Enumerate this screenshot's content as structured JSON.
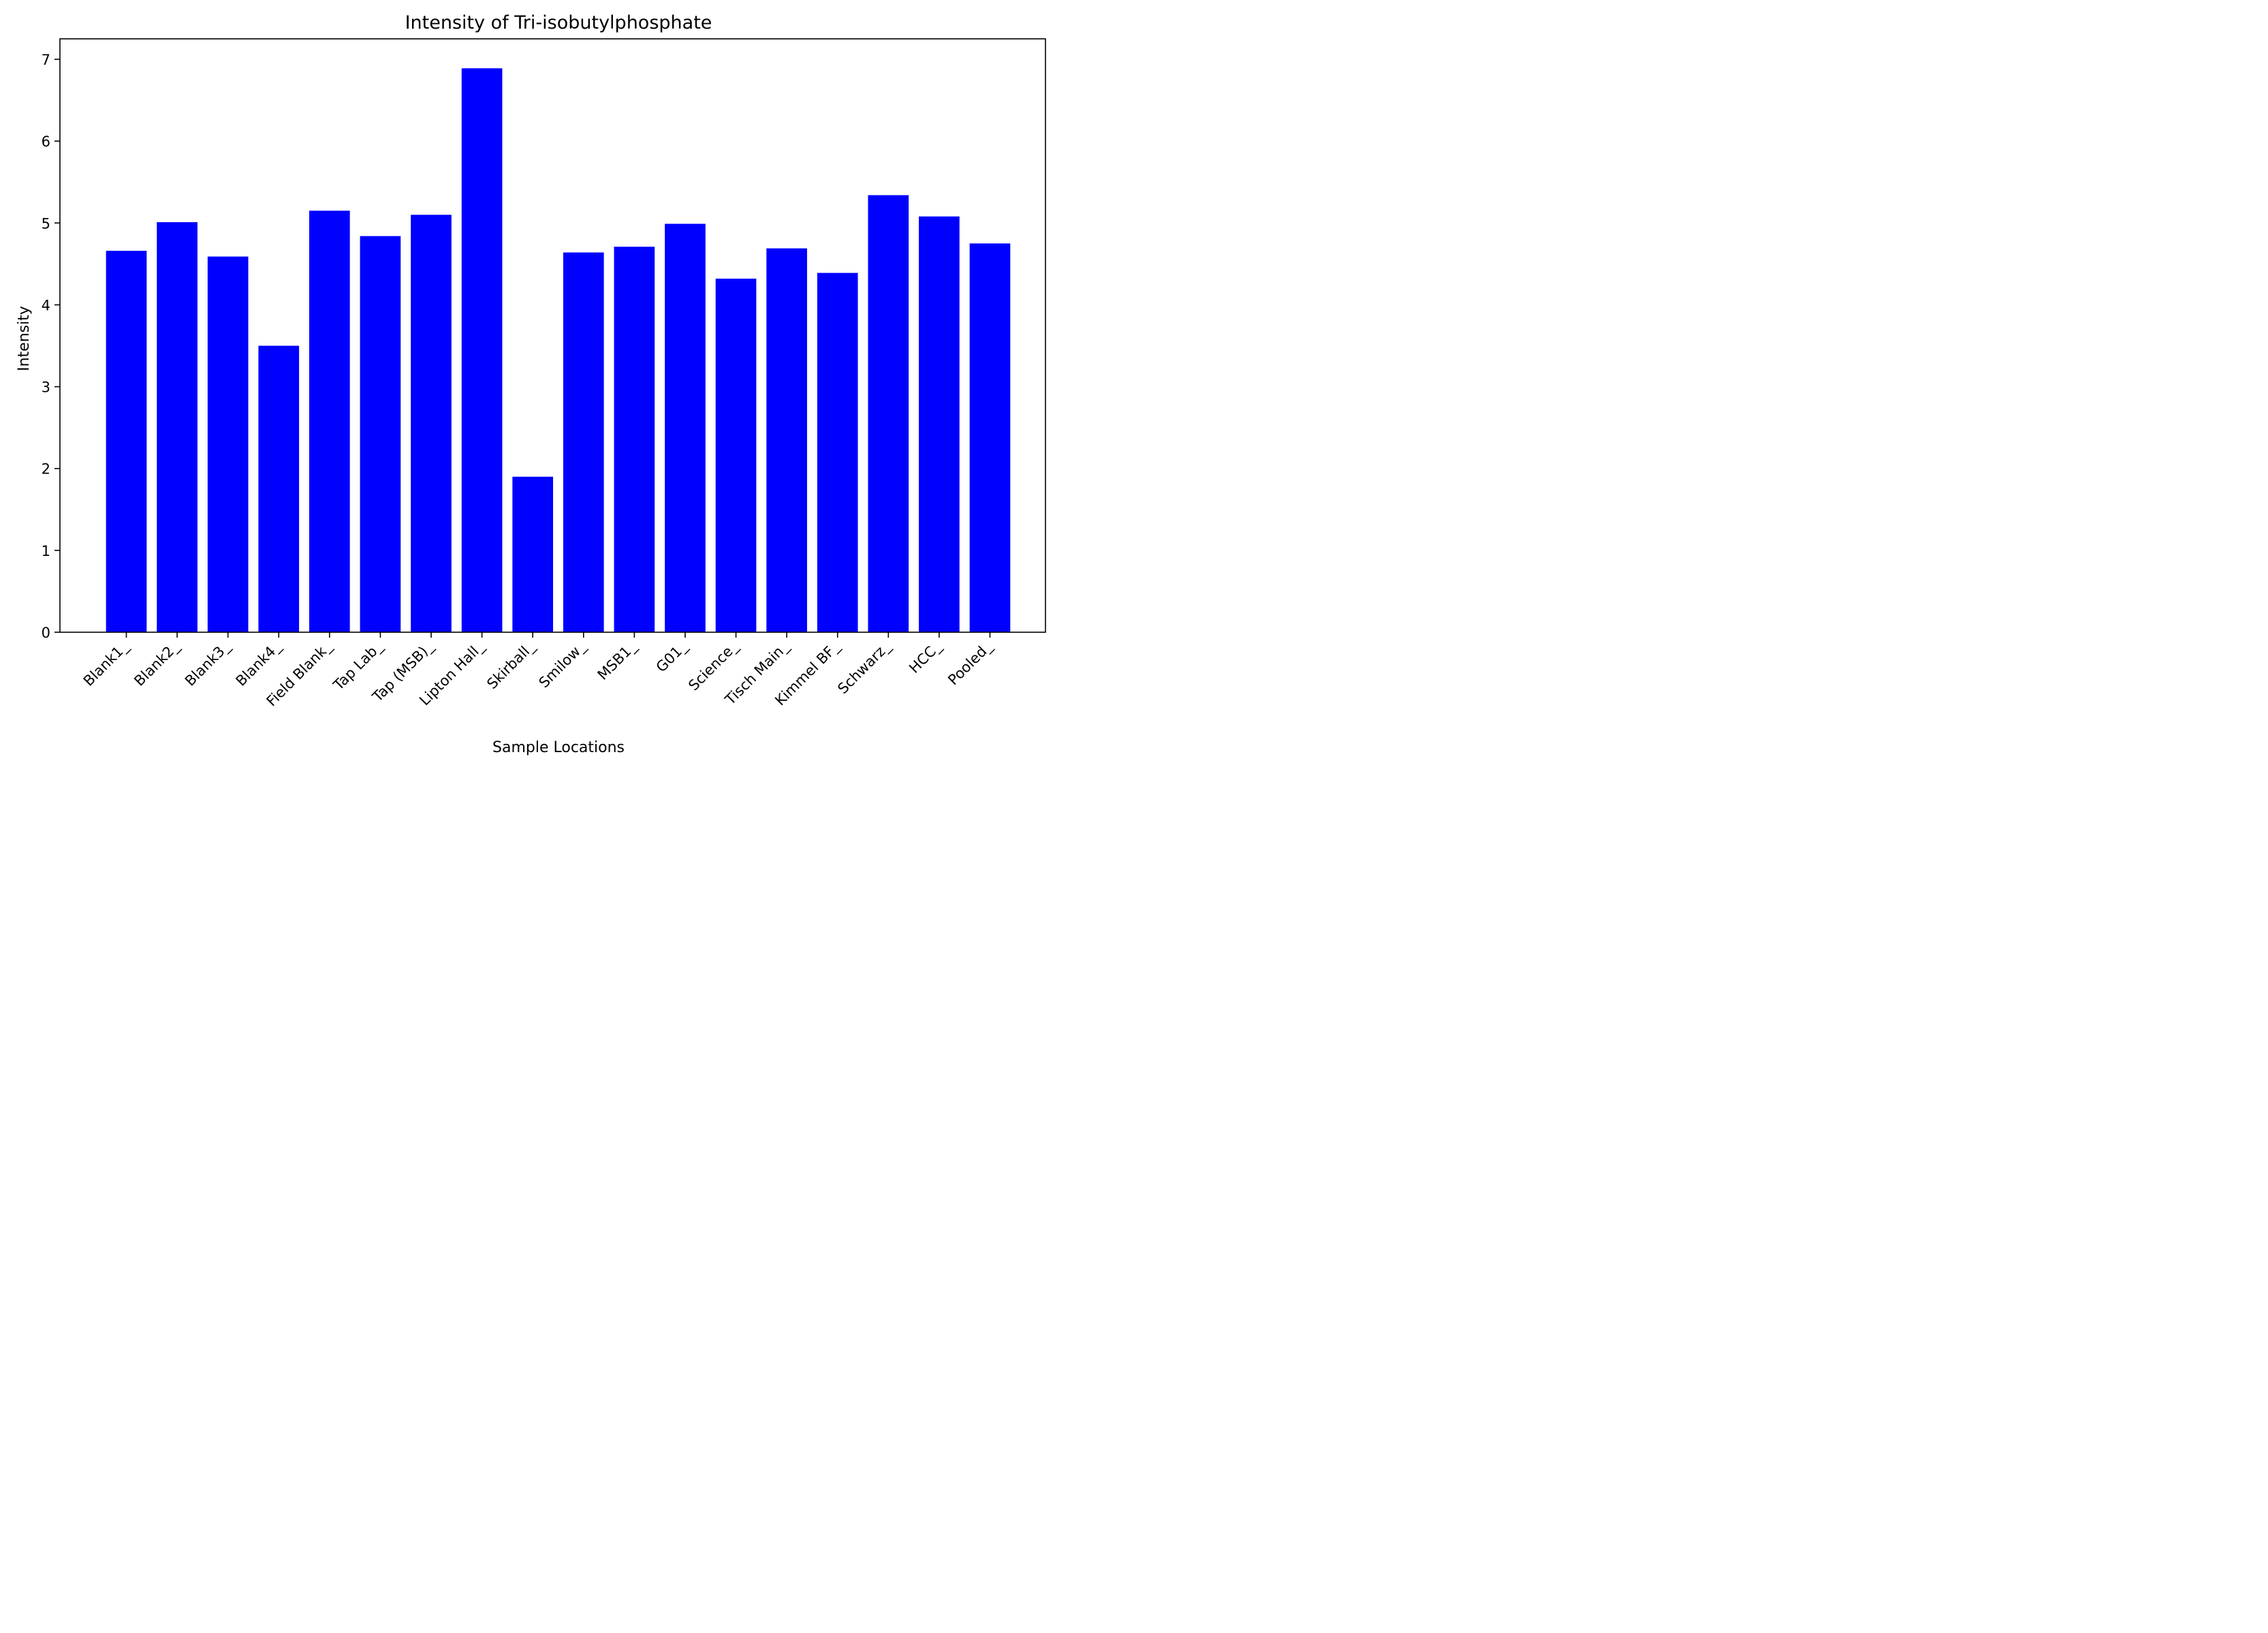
{
  "chart_data": {
    "type": "bar",
    "title": "Intensity of Tri-isobutylphosphate",
    "xlabel": "Sample Locations",
    "ylabel": "Intensity",
    "ylim": [
      0,
      7.25
    ],
    "yticks": [
      0,
      1,
      2,
      3,
      4,
      5,
      6,
      7
    ],
    "grid": false,
    "bar_color": "#0000ff",
    "categories": [
      "Blank1_",
      "Blank2_",
      "Blank3_",
      "Blank4_",
      "Field Blank_",
      "Tap Lab_",
      "Tap (MSB)_",
      "Lipton Hall_",
      "Skirball_",
      "Smilow_",
      "MSB1_",
      "G01_",
      "Science_",
      "Tisch Main_",
      "Kimmel BF_",
      "Schwarz_",
      "HCC_",
      "Pooled_"
    ],
    "values": [
      4.66,
      5.01,
      4.59,
      3.5,
      5.15,
      4.84,
      5.1,
      6.89,
      1.9,
      4.64,
      4.71,
      4.99,
      4.32,
      4.69,
      4.39,
      5.34,
      5.08,
      4.75
    ]
  }
}
